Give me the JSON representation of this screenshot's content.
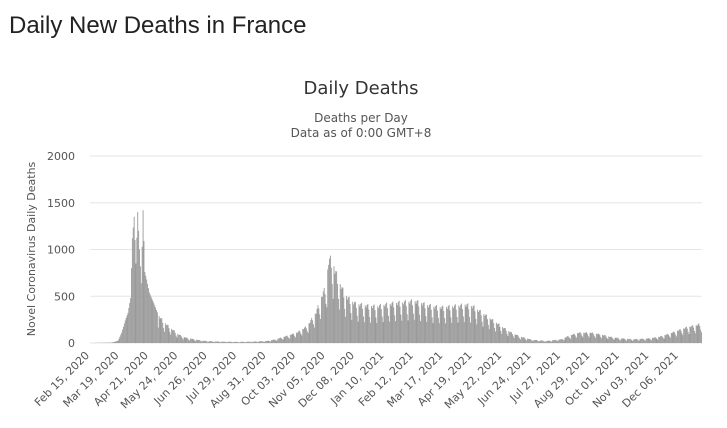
{
  "page": {
    "heading": "Daily New Deaths in France"
  },
  "chart_data": {
    "type": "bar",
    "title": "Daily Deaths",
    "subtitle_lines": [
      "Deaths per Day",
      "Data as of 0:00 GMT+8"
    ],
    "ylabel": "Novel Coronavirus Daily Deaths",
    "xlabel": "",
    "ylim": [
      0,
      2000
    ],
    "y_ticks": [
      0,
      500,
      1000,
      1500,
      2000
    ],
    "x_range": [
      "2020-02-15",
      "2022-01-01"
    ],
    "x_tick_labels": [
      "Feb 15, 2020",
      "Mar 19, 2020",
      "Apr 21, 2020",
      "May 24, 2020",
      "Jun 26, 2020",
      "Jul 29, 2020",
      "Aug 31, 2020",
      "Oct 03, 2020",
      "Nov 05, 2020",
      "Dec 08, 2020",
      "Jan 10, 2021",
      "Feb 12, 2021",
      "Mar 17, 2021",
      "Apr 19, 2021",
      "May 22, 2021",
      "Jun 24, 2021",
      "Jul 27, 2021",
      "Aug 29, 2021",
      "Oct 01, 2021",
      "Nov 03, 2021",
      "Dec 06, 2021"
    ],
    "grid": true,
    "legend": "none",
    "bar_color": "#999999",
    "series": [
      {
        "points": [
          [
            "2020-02-15",
            0
          ],
          [
            "2020-03-10",
            5
          ],
          [
            "2020-03-17",
            25
          ],
          [
            "2020-03-21",
            110
          ],
          [
            "2020-03-25",
            240
          ],
          [
            "2020-03-28",
            320
          ],
          [
            "2020-03-31",
            480
          ],
          [
            "2020-04-02",
            1120
          ],
          [
            "2020-04-04",
            1350
          ],
          [
            "2020-04-06",
            850
          ],
          [
            "2020-04-08",
            1400
          ],
          [
            "2020-04-10",
            1000
          ],
          [
            "2020-04-12",
            640
          ],
          [
            "2020-04-14",
            1420
          ],
          [
            "2020-04-16",
            760
          ],
          [
            "2020-04-18",
            680
          ],
          [
            "2020-04-21",
            540
          ],
          [
            "2020-04-25",
            450
          ],
          [
            "2020-04-28",
            380
          ],
          [
            "2020-05-01",
            300
          ],
          [
            "2020-05-05",
            250
          ],
          [
            "2020-05-10",
            200
          ],
          [
            "2020-05-15",
            160
          ],
          [
            "2020-05-20",
            120
          ],
          [
            "2020-05-24",
            90
          ],
          [
            "2020-05-31",
            60
          ],
          [
            "2020-06-10",
            40
          ],
          [
            "2020-06-20",
            25
          ],
          [
            "2020-06-26",
            20
          ],
          [
            "2020-07-10",
            15
          ],
          [
            "2020-07-29",
            12
          ],
          [
            "2020-08-15",
            15
          ],
          [
            "2020-08-31",
            22
          ],
          [
            "2020-09-10",
            40
          ],
          [
            "2020-09-20",
            70
          ],
          [
            "2020-10-03",
            110
          ],
          [
            "2020-10-15",
            180
          ],
          [
            "2020-10-25",
            330
          ],
          [
            "2020-11-01",
            520
          ],
          [
            "2020-11-05",
            600
          ],
          [
            "2020-11-08",
            880
          ],
          [
            "2020-11-12",
            900
          ],
          [
            "2020-11-15",
            780
          ],
          [
            "2020-11-20",
            650
          ],
          [
            "2020-11-26",
            520
          ],
          [
            "2020-12-01",
            470
          ],
          [
            "2020-12-08",
            420
          ],
          [
            "2020-12-20",
            400
          ],
          [
            "2021-01-01",
            390
          ],
          [
            "2021-01-10",
            410
          ],
          [
            "2021-01-25",
            430
          ],
          [
            "2021-02-05",
            440
          ],
          [
            "2021-02-12",
            450
          ],
          [
            "2021-02-25",
            410
          ],
          [
            "2021-03-05",
            390
          ],
          [
            "2021-03-17",
            380
          ],
          [
            "2021-03-25",
            390
          ],
          [
            "2021-04-05",
            400
          ],
          [
            "2021-04-10",
            410
          ],
          [
            "2021-04-19",
            390
          ],
          [
            "2021-04-28",
            330
          ],
          [
            "2021-05-10",
            250
          ],
          [
            "2021-05-22",
            170
          ],
          [
            "2021-06-01",
            110
          ],
          [
            "2021-06-12",
            65
          ],
          [
            "2021-06-24",
            35
          ],
          [
            "2021-07-10",
            22
          ],
          [
            "2021-07-27",
            40
          ],
          [
            "2021-08-05",
            80
          ],
          [
            "2021-08-15",
            110
          ],
          [
            "2021-08-29",
            110
          ],
          [
            "2021-09-10",
            90
          ],
          [
            "2021-09-20",
            65
          ],
          [
            "2021-10-01",
            50
          ],
          [
            "2021-10-15",
            40
          ],
          [
            "2021-11-03",
            50
          ],
          [
            "2021-11-15",
            70
          ],
          [
            "2021-11-25",
            100
          ],
          [
            "2021-12-06",
            140
          ],
          [
            "2021-12-15",
            170
          ],
          [
            "2021-12-25",
            190
          ],
          [
            "2022-01-01",
            210
          ]
        ]
      }
    ]
  }
}
